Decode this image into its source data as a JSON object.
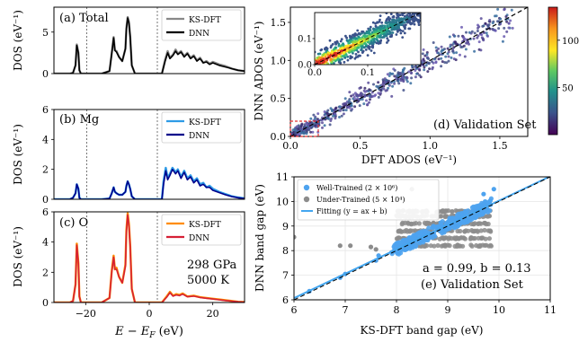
{
  "chart_data": [
    {
      "panel": "a",
      "type": "line",
      "label": "(a) Total",
      "ylabel": "DOS (eV⁻¹)",
      "xlim": [
        -30,
        30
      ],
      "ylim": [
        0,
        8
      ],
      "yticks": [
        0,
        5
      ],
      "vlines": [
        -4.5,
        4.0
      ],
      "legend": "top-right",
      "series": [
        {
          "name": "KS-DFT",
          "color": "#888888",
          "x": [
            -30,
            -25,
            -24,
            -23.2,
            -22.8,
            -22.3,
            -22,
            -21.5,
            -15,
            -12.5,
            -11.8,
            -11.2,
            -10.8,
            -10.3,
            -9.5,
            -8.5,
            -7.5,
            -7.2,
            -6.8,
            -6.4,
            -6,
            -5.5,
            -4.5,
            4,
            5,
            5.8,
            6.5,
            7.5,
            8.3,
            9,
            10,
            11,
            12,
            13,
            14,
            15,
            16,
            17,
            18,
            19,
            20,
            22,
            24,
            26,
            28,
            30
          ],
          "y": [
            0,
            0,
            0.1,
            1,
            3.5,
            2.5,
            0.4,
            0,
            0,
            0.3,
            2.5,
            4.4,
            2.8,
            2.7,
            2,
            1.5,
            3,
            5.5,
            6.8,
            6.2,
            4.5,
            1,
            0,
            0,
            1.7,
            2.7,
            1.9,
            2.3,
            2.9,
            2.4,
            2.7,
            2.1,
            2.5,
            1.9,
            2.2,
            1.6,
            1.9,
            1.3,
            1.5,
            1.2,
            1.4,
            1.1,
            0.9,
            0.6,
            0.4,
            0.3
          ]
        },
        {
          "name": "DNN",
          "color": "#000000",
          "x": [
            -30,
            -25,
            -24,
            -23.2,
            -22.8,
            -22.3,
            -22,
            -21.5,
            -15,
            -12.5,
            -11.8,
            -11.2,
            -10.8,
            -10.3,
            -9.5,
            -8.5,
            -7.5,
            -7.2,
            -6.8,
            -6.4,
            -6,
            -5.5,
            -4.5,
            4,
            5,
            5.8,
            6.5,
            7.5,
            8.3,
            9,
            10,
            11,
            12,
            13,
            14,
            15,
            16,
            17,
            18,
            19,
            20,
            22,
            24,
            26,
            28,
            30
          ],
          "y": [
            0,
            0,
            0.1,
            1,
            3.4,
            2.5,
            0.4,
            0,
            0,
            0.3,
            2.4,
            4.3,
            2.8,
            2.6,
            2,
            1.5,
            3,
            5.4,
            6.7,
            6.1,
            4.4,
            1,
            0,
            0,
            1.5,
            2.5,
            1.8,
            2.2,
            2.7,
            2.3,
            2.6,
            2,
            2.4,
            1.8,
            2.1,
            1.5,
            1.8,
            1.3,
            1.4,
            1.1,
            1.3,
            1.0,
            0.8,
            0.6,
            0.4,
            0.3
          ]
        }
      ]
    },
    {
      "panel": "b",
      "type": "line",
      "label": "(b) Mg",
      "ylabel": "DOS (eV⁻¹)",
      "xlim": [
        -30,
        30
      ],
      "ylim": [
        0,
        6
      ],
      "yticks": [
        0,
        2,
        4,
        6
      ],
      "vlines": [
        -4.5,
        4.0
      ],
      "legend": "top-right",
      "series": [
        {
          "name": "KS-DFT",
          "color": "#2e9be6",
          "x": [
            -30,
            -25,
            -24,
            -23.2,
            -22.8,
            -22.3,
            -22,
            -21.5,
            -15,
            -12.5,
            -11.8,
            -11.2,
            -10.8,
            -10.3,
            -9.5,
            -8.5,
            -7.5,
            -7.2,
            -6.8,
            -6.4,
            -6,
            -5.5,
            -4.5,
            4,
            4.5,
            5.2,
            5.8,
            6.5,
            7.3,
            8.3,
            9,
            10,
            11,
            12,
            13,
            14,
            15,
            16,
            17,
            18,
            19,
            20,
            22,
            24,
            26,
            28,
            30
          ],
          "y": [
            0,
            0,
            0.1,
            0.4,
            1.0,
            0.7,
            0.1,
            0,
            0,
            0.05,
            0.4,
            0.8,
            0.5,
            0.4,
            0.3,
            0.3,
            0.5,
            0.9,
            1.2,
            1.0,
            0.7,
            0.2,
            0,
            0,
            1.2,
            2.1,
            1.4,
            1.7,
            2.1,
            1.8,
            2.0,
            1.5,
            1.9,
            1.4,
            1.6,
            1.2,
            1.4,
            1.0,
            1.1,
            0.8,
            0.9,
            0.7,
            0.5,
            0.35,
            0.2,
            0.12,
            0.06
          ]
        },
        {
          "name": "DNN",
          "color": "#00008b",
          "x": [
            -30,
            -25,
            -24,
            -23.2,
            -22.8,
            -22.3,
            -22,
            -21.5,
            -15,
            -12.5,
            -11.8,
            -11.2,
            -10.8,
            -10.3,
            -9.5,
            -8.5,
            -7.5,
            -7.2,
            -6.8,
            -6.4,
            -6,
            -5.5,
            -4.5,
            4,
            4.5,
            5.2,
            5.8,
            6.5,
            7.3,
            8.3,
            9,
            10,
            11,
            12,
            13,
            14,
            15,
            16,
            17,
            18,
            19,
            20,
            22,
            24,
            26,
            28,
            30
          ],
          "y": [
            0,
            0,
            0.1,
            0.4,
            1.0,
            0.7,
            0.1,
            0,
            0,
            0.05,
            0.4,
            0.8,
            0.5,
            0.4,
            0.3,
            0.3,
            0.5,
            0.9,
            1.2,
            1.0,
            0.7,
            0.2,
            0,
            0,
            1.0,
            1.9,
            1.3,
            1.6,
            2.0,
            1.7,
            1.9,
            1.4,
            1.8,
            1.3,
            1.5,
            1.1,
            1.3,
            0.9,
            1.0,
            0.8,
            0.8,
            0.6,
            0.45,
            0.3,
            0.18,
            0.1,
            0.05
          ]
        }
      ]
    },
    {
      "panel": "c",
      "type": "line",
      "label": "(c) O",
      "ylabel": "DOS (eV⁻¹)",
      "xlabel": "E − E_F (eV)",
      "xlim": [
        -30,
        30
      ],
      "ylim": [
        0,
        6
      ],
      "xticks": [
        -20,
        0,
        20
      ],
      "yticks": [
        0,
        2,
        4,
        6
      ],
      "vlines": [
        -4.5,
        4.0
      ],
      "legend": "top-right",
      "annotation": [
        "298 GPa",
        "5000 K"
      ],
      "series": [
        {
          "name": "KS-DFT",
          "color": "#ff8c00",
          "x": [
            -30,
            -25,
            -24,
            -23.2,
            -22.8,
            -22.3,
            -22,
            -21.5,
            -15,
            -12.5,
            -11.8,
            -11.2,
            -10.8,
            -10.3,
            -9.5,
            -8.5,
            -7.5,
            -7.2,
            -6.8,
            -6.4,
            -6,
            -5.5,
            -4.5,
            4,
            5.5,
            6.5,
            7.5,
            8.5,
            9.5,
            10.5,
            12,
            14,
            16,
            18,
            20,
            22,
            24,
            26,
            28,
            30
          ],
          "y": [
            0,
            0,
            0.1,
            1.2,
            3.9,
            2.6,
            0.4,
            0,
            0,
            0.3,
            2.1,
            3.1,
            2.2,
            2.3,
            1.7,
            1.3,
            2.5,
            4.8,
            5.9,
            5.2,
            3.8,
            0.9,
            0,
            0,
            0.4,
            0.7,
            0.45,
            0.55,
            0.5,
            0.6,
            0.4,
            0.45,
            0.35,
            0.3,
            0.25,
            0.2,
            0.15,
            0.1,
            0.05,
            0.03
          ]
        },
        {
          "name": "DNN",
          "color": "#d62035",
          "x": [
            -30,
            -25,
            -24,
            -23.2,
            -22.8,
            -22.3,
            -22,
            -21.5,
            -15,
            -12.5,
            -11.8,
            -11.2,
            -10.8,
            -10.3,
            -9.5,
            -8.5,
            -7.5,
            -7.2,
            -6.8,
            -6.4,
            -6,
            -5.5,
            -4.5,
            4,
            5.5,
            6.5,
            7.5,
            8.5,
            9.5,
            10.5,
            12,
            14,
            16,
            18,
            20,
            22,
            24,
            26,
            28,
            30
          ],
          "y": [
            0,
            0,
            0.1,
            1.2,
            3.8,
            2.6,
            0.4,
            0,
            0,
            0.3,
            2.0,
            3.0,
            2.2,
            2.2,
            1.7,
            1.3,
            2.4,
            4.7,
            5.8,
            5.1,
            3.7,
            0.9,
            0,
            0,
            0.35,
            0.65,
            0.42,
            0.5,
            0.45,
            0.55,
            0.38,
            0.42,
            0.33,
            0.28,
            0.23,
            0.18,
            0.13,
            0.09,
            0.05,
            0.03
          ]
        }
      ]
    },
    {
      "panel": "d",
      "type": "scatter",
      "label": "(d) Validation Set",
      "xlabel": "DFT ADOS (eV⁻¹)",
      "ylabel": "DNN ADOS (eV⁻¹)",
      "xlim": [
        0,
        1.7
      ],
      "ylim": [
        0,
        1.7
      ],
      "xticks": [
        0.0,
        0.5,
        1.0,
        1.5
      ],
      "yticks": [
        0.0,
        0.5,
        1.0,
        1.5
      ],
      "diagonal": true,
      "inset": {
        "xlim": [
          0,
          0.2
        ],
        "ylim": [
          0,
          0.2
        ],
        "xticks": [
          0.0,
          0.1
        ],
        "yticks": [
          0.0,
          0.1
        ]
      },
      "colorbar": {
        "ticks": [
          50,
          100
        ],
        "range": [
          0,
          135
        ],
        "colors": [
          "#440154",
          "#3b528b",
          "#21918c",
          "#5ec962",
          "#fde725",
          "#f8961e",
          "#c91a1a"
        ]
      }
    },
    {
      "panel": "e",
      "type": "scatter",
      "label": "(e) Validation Set",
      "xlabel": "KS-DFT band gap (eV)",
      "ylabel": "DNN band gap (eV)",
      "xlim": [
        6,
        11
      ],
      "ylim": [
        6,
        11
      ],
      "xticks": [
        6,
        7,
        8,
        9,
        10,
        11
      ],
      "yticks": [
        6,
        7,
        8,
        9,
        10,
        11
      ],
      "annotation": "a = 0.99, b = 0.13",
      "legend": "top-left",
      "series": [
        {
          "name": "Well-Trained (2 × 10⁶)",
          "color": "#4ea3ef",
          "kind": "points"
        },
        {
          "name": "Under-Trained (5 × 10⁴)",
          "color": "#8c8c8c",
          "kind": "points"
        },
        {
          "name": "Fitting (y = ax + b)",
          "color": "#43a6f0",
          "kind": "line",
          "a": 0.99,
          "b": 0.13
        }
      ]
    }
  ]
}
